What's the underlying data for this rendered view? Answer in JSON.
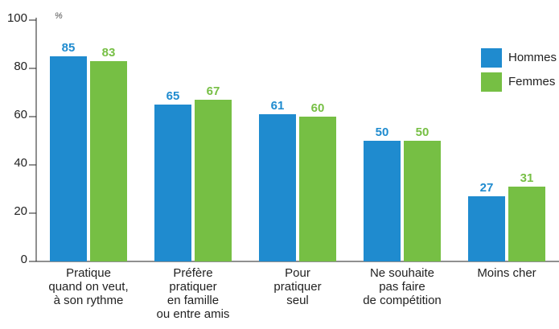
{
  "chart_data": {
    "type": "bar",
    "unit_label": "%",
    "categories": [
      [
        "Pratique",
        "quand on veut,",
        "à son rythme"
      ],
      [
        "Préfère",
        "pratiquer",
        "en famille",
        "ou entre amis"
      ],
      [
        "Pour",
        "pratiquer",
        "seul"
      ],
      [
        "Ne souhaite",
        "pas faire",
        "de compétition"
      ],
      [
        "Moins cher"
      ]
    ],
    "series": [
      {
        "name": "Hommes",
        "color": "#1f8bcf",
        "values": [
          85,
          65,
          61,
          50,
          27
        ]
      },
      {
        "name": "Femmes",
        "color": "#76bf44",
        "values": [
          83,
          67,
          60,
          50,
          31
        ]
      }
    ],
    "ylim": [
      0,
      100
    ],
    "yticks": [
      0,
      20,
      40,
      60,
      80,
      100
    ],
    "grid": false,
    "legend": "top-right"
  }
}
